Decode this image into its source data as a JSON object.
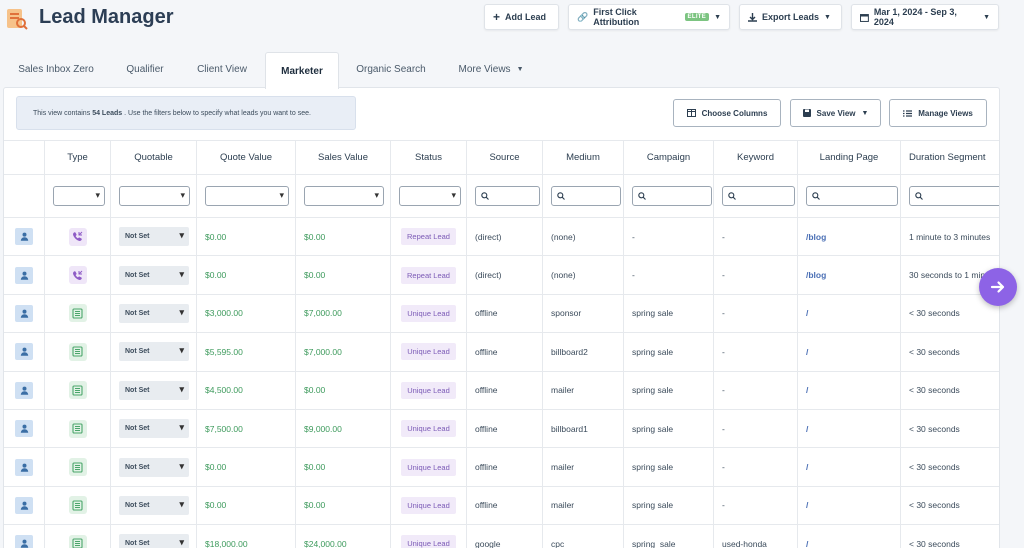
{
  "header": {
    "title": "Lead Manager",
    "add_lead": "Add Lead",
    "attribution": "First Click Attribution",
    "attribution_badge": "ELITE",
    "export": "Export Leads",
    "date_range": "Mar 1, 2024 - Sep 3, 2024"
  },
  "tabs": [
    "Sales Inbox Zero",
    "Qualifier",
    "Client View",
    "Marketer",
    "Organic Search",
    "More Views"
  ],
  "info": {
    "prefix": "This view contains",
    "count": "54 Leads",
    "suffix": ". Use the filters below to specify what leads you want to see."
  },
  "toolbar": {
    "choose_columns": "Choose Columns",
    "save_view": "Save View",
    "manage_views": "Manage Views"
  },
  "columns": [
    "Type",
    "Quotable",
    "Quote Value",
    "Sales Value",
    "Status",
    "Source",
    "Medium",
    "Campaign",
    "Keyword",
    "Landing Page",
    "Duration Segment"
  ],
  "rows": [
    {
      "type": "call",
      "quotable": "Not Set",
      "quote": "$0.00",
      "sales": "$0.00",
      "status": "Repeat Lead",
      "source": "(direct)",
      "medium": "(none)",
      "campaign": "-",
      "keyword": "-",
      "landing": "/blog",
      "duration": "1 minute to 3 minutes"
    },
    {
      "type": "call",
      "quotable": "Not Set",
      "quote": "$0.00",
      "sales": "$0.00",
      "status": "Repeat Lead",
      "source": "(direct)",
      "medium": "(none)",
      "campaign": "-",
      "keyword": "-",
      "landing": "/blog",
      "duration": "30 seconds to 1 minute"
    },
    {
      "type": "form",
      "quotable": "Not Set",
      "quote": "$3,000.00",
      "sales": "$7,000.00",
      "status": "Unique Lead",
      "source": "offline",
      "medium": "sponsor",
      "campaign": "spring sale",
      "keyword": "-",
      "landing": "/",
      "duration": "< 30 seconds"
    },
    {
      "type": "form",
      "quotable": "Not Set",
      "quote": "$5,595.00",
      "sales": "$7,000.00",
      "status": "Unique Lead",
      "source": "offline",
      "medium": "billboard2",
      "campaign": "spring sale",
      "keyword": "-",
      "landing": "/",
      "duration": "< 30 seconds"
    },
    {
      "type": "form",
      "quotable": "Not Set",
      "quote": "$4,500.00",
      "sales": "$0.00",
      "status": "Unique Lead",
      "source": "offline",
      "medium": "mailer",
      "campaign": "spring sale",
      "keyword": "-",
      "landing": "/",
      "duration": "< 30 seconds"
    },
    {
      "type": "form",
      "quotable": "Not Set",
      "quote": "$7,500.00",
      "sales": "$9,000.00",
      "status": "Unique Lead",
      "source": "offline",
      "medium": "billboard1",
      "campaign": "spring sale",
      "keyword": "-",
      "landing": "/",
      "duration": "< 30 seconds"
    },
    {
      "type": "form",
      "quotable": "Not Set",
      "quote": "$0.00",
      "sales": "$0.00",
      "status": "Unique Lead",
      "source": "offline",
      "medium": "mailer",
      "campaign": "spring sale",
      "keyword": "-",
      "landing": "/",
      "duration": "< 30 seconds"
    },
    {
      "type": "form",
      "quotable": "Not Set",
      "quote": "$0.00",
      "sales": "$0.00",
      "status": "Unique Lead",
      "source": "offline",
      "medium": "mailer",
      "campaign": "spring sale",
      "keyword": "-",
      "landing": "/",
      "duration": "< 30 seconds"
    },
    {
      "type": "form",
      "quotable": "Not Set",
      "quote": "$18,000.00",
      "sales": "$24,000.00",
      "status": "Unique Lead",
      "source": "google",
      "medium": "cpc",
      "campaign": "spring_sale",
      "keyword": "used-honda",
      "landing": "/",
      "duration": "< 30 seconds"
    }
  ],
  "colors": {
    "accent": "#8d63e6",
    "money": "#3d9a5c",
    "badge_text": "#7b5ab6",
    "link": "#4a6fb5"
  }
}
